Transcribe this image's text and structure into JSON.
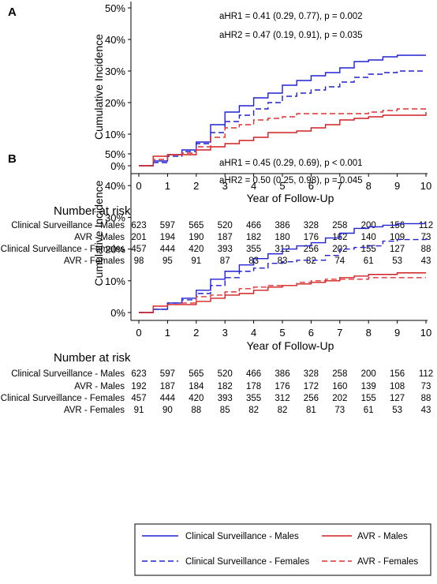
{
  "panels": [
    {
      "letter": "A",
      "annotations": [
        "aHR1 = 0.41 (0.29, 0.77), p = 0.002",
        "aHR2 = 0.47 (0.19, 0.91), p = 0.035"
      ],
      "risk_title": "Number at risk",
      "risk_rows": [
        {
          "label": "Clinical Surveillance - Males",
          "values": [
            "623",
            "597",
            "565",
            "520",
            "466",
            "386",
            "328",
            "258",
            "200",
            "156",
            "112"
          ]
        },
        {
          "label": "AVR - Males",
          "values": [
            "201",
            "194",
            "190",
            "187",
            "182",
            "180",
            "176",
            "162",
            "140",
            "109",
            "73"
          ]
        },
        {
          "label": "Clinical Surveillance - Females",
          "values": [
            "457",
            "444",
            "420",
            "393",
            "355",
            "312",
            "256",
            "202",
            "155",
            "127",
            "88"
          ]
        },
        {
          "label": "AVR - Females",
          "values": [
            "98",
            "95",
            "91",
            "87",
            "83",
            "83",
            "82",
            "74",
            "61",
            "53",
            "43"
          ]
        }
      ]
    },
    {
      "letter": "B",
      "annotations": [
        "aHR1 = 0.45 (0.29, 0.69), p < 0.001",
        "aHR2 = 0.50 (0.25, 0.98), p = 0.045"
      ],
      "risk_title": "Number at risk",
      "risk_rows": [
        {
          "label": "Clinical Surveillance - Males",
          "values": [
            "623",
            "597",
            "565",
            "520",
            "466",
            "386",
            "328",
            "258",
            "200",
            "156",
            "112"
          ]
        },
        {
          "label": "AVR - Males",
          "values": [
            "192",
            "187",
            "184",
            "182",
            "178",
            "176",
            "172",
            "160",
            "139",
            "108",
            "73"
          ]
        },
        {
          "label": "Clinical Surveillance - Females",
          "values": [
            "457",
            "444",
            "420",
            "393",
            "355",
            "312",
            "256",
            "202",
            "155",
            "127",
            "88"
          ]
        },
        {
          "label": "AVR - Females",
          "values": [
            "91",
            "90",
            "88",
            "85",
            "82",
            "82",
            "81",
            "73",
            "61",
            "53",
            "43"
          ]
        }
      ]
    }
  ],
  "legend": [
    {
      "label": "Clinical Surveillance - Males",
      "color": "#2020d0",
      "dash": false
    },
    {
      "label": "AVR - Males",
      "color": "#d02020",
      "dash": false
    },
    {
      "label": "Clinical Surveillance - Females",
      "color": "#2020d0",
      "dash": true
    },
    {
      "label": "AVR - Females",
      "color": "#e03030",
      "dash": true
    }
  ],
  "chart_data": [
    {
      "type": "line",
      "step": true,
      "xlabel": "Year of Follow-Up",
      "ylabel": "Cumulative Incidence",
      "xlim": [
        0,
        10
      ],
      "ylim": [
        0,
        50
      ],
      "xticks": [
        "0",
        "1",
        "2",
        "3",
        "4",
        "5",
        "6",
        "7",
        "8",
        "9",
        "10"
      ],
      "yticks": [
        "0%",
        "10%",
        "20%",
        "30%",
        "40%",
        "50%"
      ],
      "series": [
        {
          "name": "Clinical Surveillance - Males",
          "x": [
            0,
            0.5,
            1,
            1.5,
            2,
            2.5,
            3,
            3.5,
            4,
            4.5,
            5,
            5.5,
            6,
            6.5,
            7,
            7.5,
            8,
            8.5,
            9,
            10
          ],
          "y": [
            0,
            1.5,
            3.5,
            5,
            7.5,
            13,
            17,
            19,
            21.5,
            23,
            25.5,
            27,
            28.5,
            29.5,
            31,
            33,
            33.5,
            34.5,
            35,
            35
          ]
        },
        {
          "name": "AVR - Males",
          "x": [
            0,
            0.5,
            1,
            1.5,
            2,
            2.5,
            3,
            3.5,
            4,
            4.5,
            5,
            5.5,
            6,
            6.5,
            7,
            7.5,
            8,
            8.5,
            9,
            10
          ],
          "y": [
            0,
            3,
            3.5,
            3.5,
            5,
            6,
            7,
            8,
            9,
            10.5,
            10.5,
            11,
            12,
            13,
            14.5,
            15,
            15.5,
            16,
            16,
            17
          ]
        },
        {
          "name": "Clinical Surveillance - Females",
          "x": [
            0,
            0.5,
            1,
            1.5,
            2,
            2.5,
            3,
            3.5,
            4,
            4.5,
            5,
            5.5,
            6,
            6.5,
            7,
            7.5,
            8,
            8.5,
            9,
            10
          ],
          "y": [
            0,
            1,
            3,
            4.5,
            7,
            10.5,
            14,
            16,
            18,
            20,
            22,
            23,
            24,
            25,
            26.5,
            28,
            29,
            29.5,
            30,
            30
          ]
        },
        {
          "name": "AVR - Females",
          "x": [
            0,
            0.5,
            1,
            1.5,
            2,
            2.5,
            3,
            3.5,
            4,
            4.5,
            5,
            5.5,
            6,
            6.5,
            7,
            7.5,
            8,
            8.5,
            9,
            10
          ],
          "y": [
            0,
            2,
            3.5,
            4,
            6,
            9,
            12,
            13,
            14.5,
            15,
            15.5,
            16.5,
            16.5,
            16.5,
            16.5,
            16.5,
            17,
            17.5,
            18,
            18
          ]
        }
      ]
    },
    {
      "type": "line",
      "step": true,
      "xlabel": "Year of Follow-Up",
      "ylabel": "Cumulative Incidence",
      "xlim": [
        0,
        10
      ],
      "ylim": [
        0,
        50
      ],
      "xticks": [
        "0",
        "1",
        "2",
        "3",
        "4",
        "5",
        "6",
        "7",
        "8",
        "9",
        "10"
      ],
      "yticks": [
        "0%",
        "10%",
        "20%",
        "30%",
        "40%",
        "50%"
      ],
      "series": [
        {
          "name": "Clinical Surveillance - Males",
          "x": [
            0,
            0.5,
            1,
            1.5,
            2,
            2.5,
            3,
            3.5,
            4,
            4.5,
            5,
            5.5,
            6,
            6.5,
            7,
            7.5,
            8,
            8.5,
            9,
            10
          ],
          "y": [
            0,
            1,
            3,
            4.5,
            7,
            10.5,
            13,
            15,
            17,
            18.5,
            20,
            21,
            22,
            23.5,
            25,
            26.5,
            27,
            27.5,
            28,
            28
          ]
        },
        {
          "name": "AVR - Males",
          "x": [
            0,
            0.5,
            1,
            1.5,
            2,
            2.5,
            3,
            3.5,
            4,
            4.5,
            5,
            5.5,
            6,
            6.5,
            7,
            7.5,
            8,
            8.5,
            9,
            10
          ],
          "y": [
            0,
            2,
            2.5,
            2.5,
            3.5,
            4.5,
            5.5,
            6,
            7,
            8,
            8.5,
            9,
            9.5,
            10,
            11,
            11.5,
            12,
            12,
            12.5,
            12.5
          ]
        },
        {
          "name": "Clinical Surveillance - Females",
          "x": [
            0,
            0.5,
            1,
            1.5,
            2,
            2.5,
            3,
            3.5,
            4,
            4.5,
            5,
            5.5,
            6,
            6.5,
            7,
            7.5,
            8,
            8.5,
            9,
            10
          ],
          "y": [
            0,
            1,
            3,
            4,
            6,
            8.5,
            11,
            13,
            14,
            15.5,
            16,
            16.5,
            16.5,
            18,
            20,
            20.5,
            21,
            22.5,
            23,
            23.5
          ]
        },
        {
          "name": "AVR - Females",
          "x": [
            0,
            0.5,
            1,
            1.5,
            2,
            2.5,
            3,
            3.5,
            4,
            4.5,
            5,
            5.5,
            6,
            6.5,
            7,
            7.5,
            8,
            8.5,
            9,
            10
          ],
          "y": [
            0,
            2,
            2.5,
            3,
            5,
            5.5,
            6.5,
            7.5,
            8,
            8.5,
            8.5,
            9.5,
            10,
            10.5,
            10.5,
            10.5,
            11,
            11,
            11,
            11
          ]
        }
      ]
    }
  ]
}
